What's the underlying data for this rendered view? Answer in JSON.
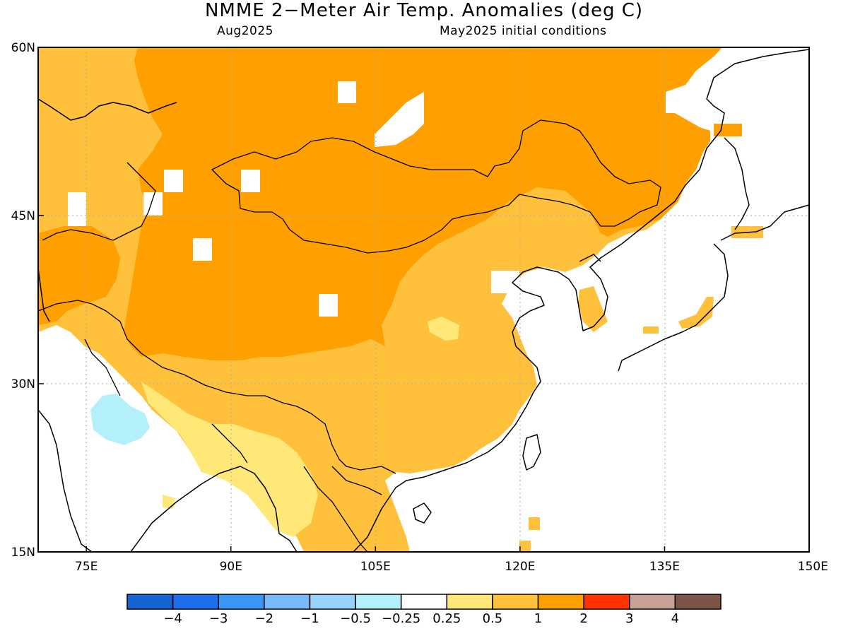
{
  "title": "NMME 2−Meter Air Temp. Anomalies (deg C)",
  "subtitle_left": "Aug2025",
  "subtitle_right": "May2025 initial conditions",
  "map": {
    "lon_range": [
      70,
      150
    ],
    "lat_range": [
      15,
      60
    ],
    "lat_labels": [
      {
        "value": 60,
        "label": "60N"
      },
      {
        "value": 45,
        "label": "45N"
      },
      {
        "value": 30,
        "label": "30N"
      },
      {
        "value": 15,
        "label": "15N"
      }
    ],
    "lon_labels": [
      {
        "value": 75,
        "label": "75E"
      },
      {
        "value": 90,
        "label": "90E"
      },
      {
        "value": 105,
        "label": "105E"
      },
      {
        "value": 120,
        "label": "120E"
      },
      {
        "value": 135,
        "label": "135E"
      },
      {
        "value": 150,
        "label": "150E"
      }
    ],
    "grid": true
  },
  "colorbar": {
    "colors": [
      "#1464d2",
      "#1e6eeb",
      "#3c96f5",
      "#78b9fa",
      "#96d2fa",
      "#b4f0fa",
      "#ffffff",
      "#ffe878",
      "#ffc03c",
      "#ffa000",
      "#ff3200",
      "#c8a096",
      "#7a5548"
    ],
    "labels": [
      "−4",
      "−3",
      "−2",
      "−1",
      "−0.5",
      "−0.25",
      "0.25",
      "0.5",
      "1",
      "2",
      "3",
      "4"
    ]
  },
  "shading_colors": {
    "dark_orange": "#ffa000",
    "light_orange": "#ffc03c",
    "yellow": "#ffe878",
    "light_blue": "#b4f0fa"
  }
}
